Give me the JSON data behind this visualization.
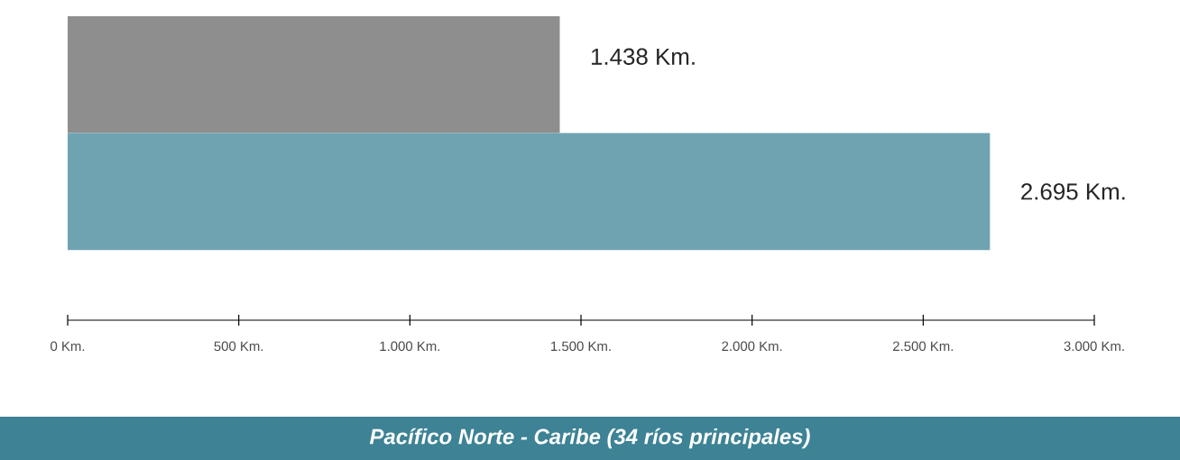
{
  "chart_data": {
    "type": "bar",
    "orientation": "horizontal",
    "title": "Pacífico Norte - Caribe (34 ríos principales)",
    "categories": [
      null,
      null
    ],
    "values": [
      1438,
      2695
    ],
    "colors": [
      "#8f8e8f",
      "#6fa3b2"
    ],
    "value_labels": [
      "1.438 Km.",
      "2.695 Km."
    ],
    "xlim": [
      0,
      3000
    ],
    "xticks": [
      {
        "value": 0,
        "label": "0 Km."
      },
      {
        "value": 500,
        "label": "500 Km."
      },
      {
        "value": 1000,
        "label": "1.000 Km."
      },
      {
        "value": 1500,
        "label": "1.500 Km."
      },
      {
        "value": 2000,
        "label": "2.000 Km."
      },
      {
        "value": 2500,
        "label": "2.500 Km."
      },
      {
        "value": 3000,
        "label": "3.000 Km."
      }
    ],
    "tick_labels": "x",
    "grid": false
  }
}
